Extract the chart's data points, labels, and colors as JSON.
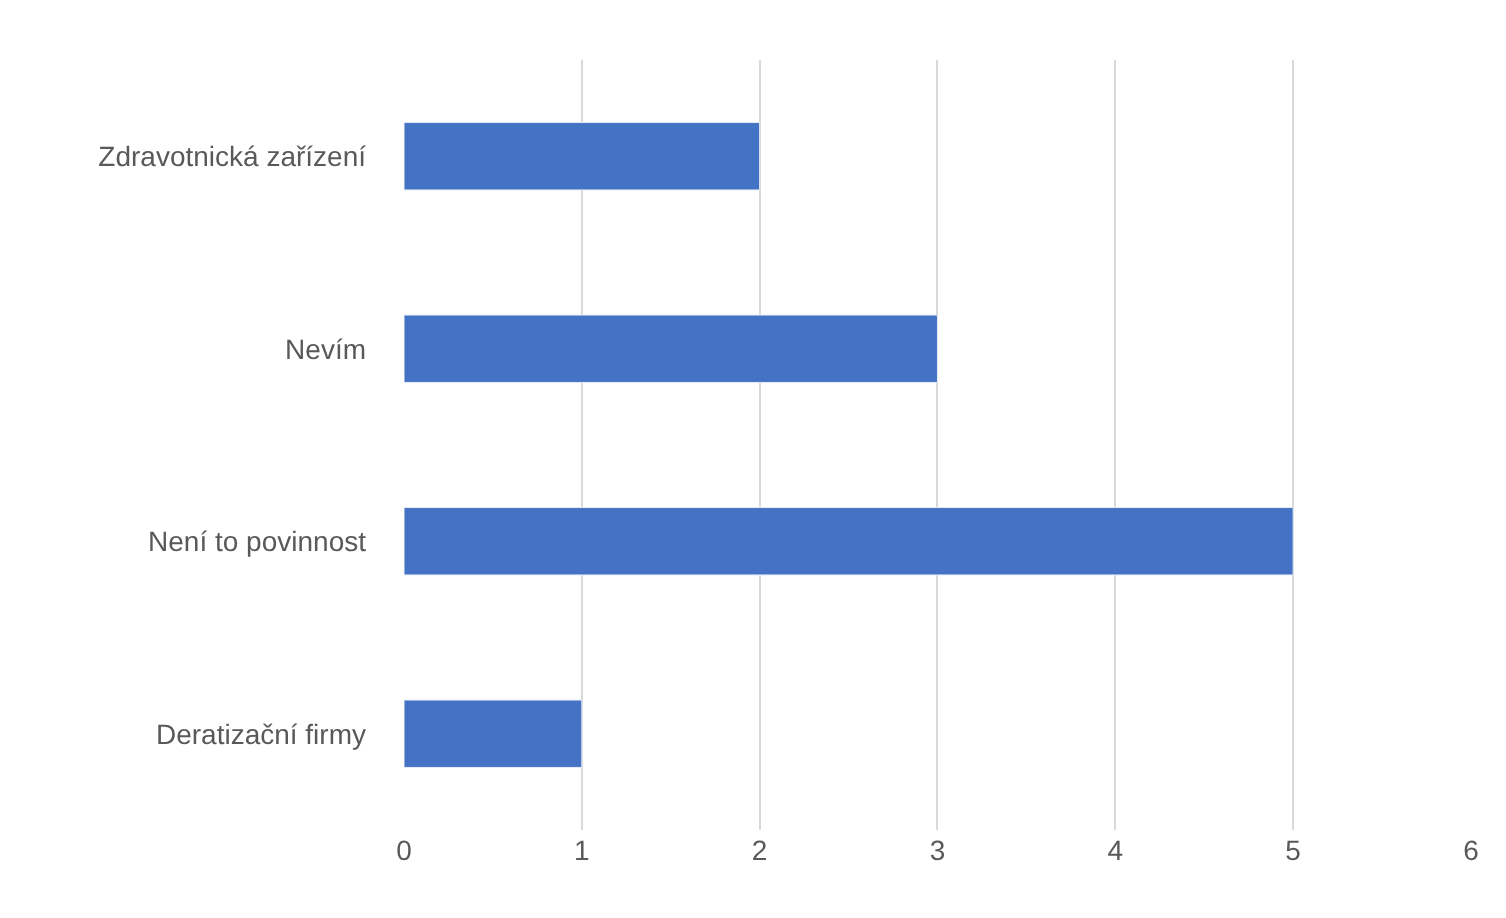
{
  "chart_data": {
    "type": "bar",
    "orientation": "horizontal",
    "categories": [
      "Zdravotnická zařízení",
      "Nevím",
      "Není to povinnost",
      "Deratizační firmy"
    ],
    "values": [
      2,
      3,
      5,
      1
    ],
    "color": "#4472c4",
    "xlim": [
      0,
      6
    ],
    "xticks": [
      0,
      1,
      2,
      3,
      4,
      5,
      6
    ],
    "grid": "x"
  }
}
